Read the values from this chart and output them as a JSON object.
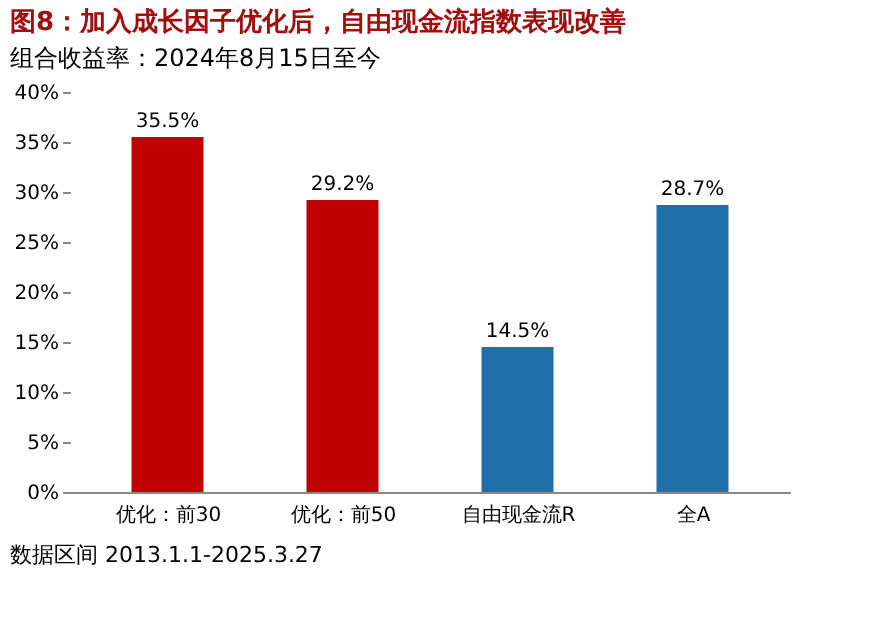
{
  "chart_data": {
    "type": "bar",
    "title": "图8：加入成长因子优化后，自由现金流指数表现改善",
    "subtitle": "组合收益率：2024年8月15日至今",
    "categories": [
      "优化：前30",
      "优化：前50",
      "自由现金流R",
      "全A"
    ],
    "values": [
      35.5,
      29.2,
      14.5,
      28.7
    ],
    "colors": [
      "#c00000",
      "#c00000",
      "#1f6fa8",
      "#1f6fa8"
    ],
    "value_labels": [
      "35.5%",
      "29.2%",
      "14.5%",
      "28.7%"
    ],
    "ylim": [
      0,
      40
    ],
    "yticks": [
      {
        "value": 0,
        "label": "0%"
      },
      {
        "value": 5,
        "label": "5%"
      },
      {
        "value": 10,
        "label": "10%"
      },
      {
        "value": 15,
        "label": "15%"
      },
      {
        "value": 20,
        "label": "20%"
      },
      {
        "value": 25,
        "label": "25%"
      },
      {
        "value": 30,
        "label": "30%"
      },
      {
        "value": 35,
        "label": "35%"
      },
      {
        "value": 40,
        "label": "40%"
      }
    ],
    "grid": false,
    "annotations": [
      "数据区间 2013.1.1-2025.3.27"
    ]
  }
}
